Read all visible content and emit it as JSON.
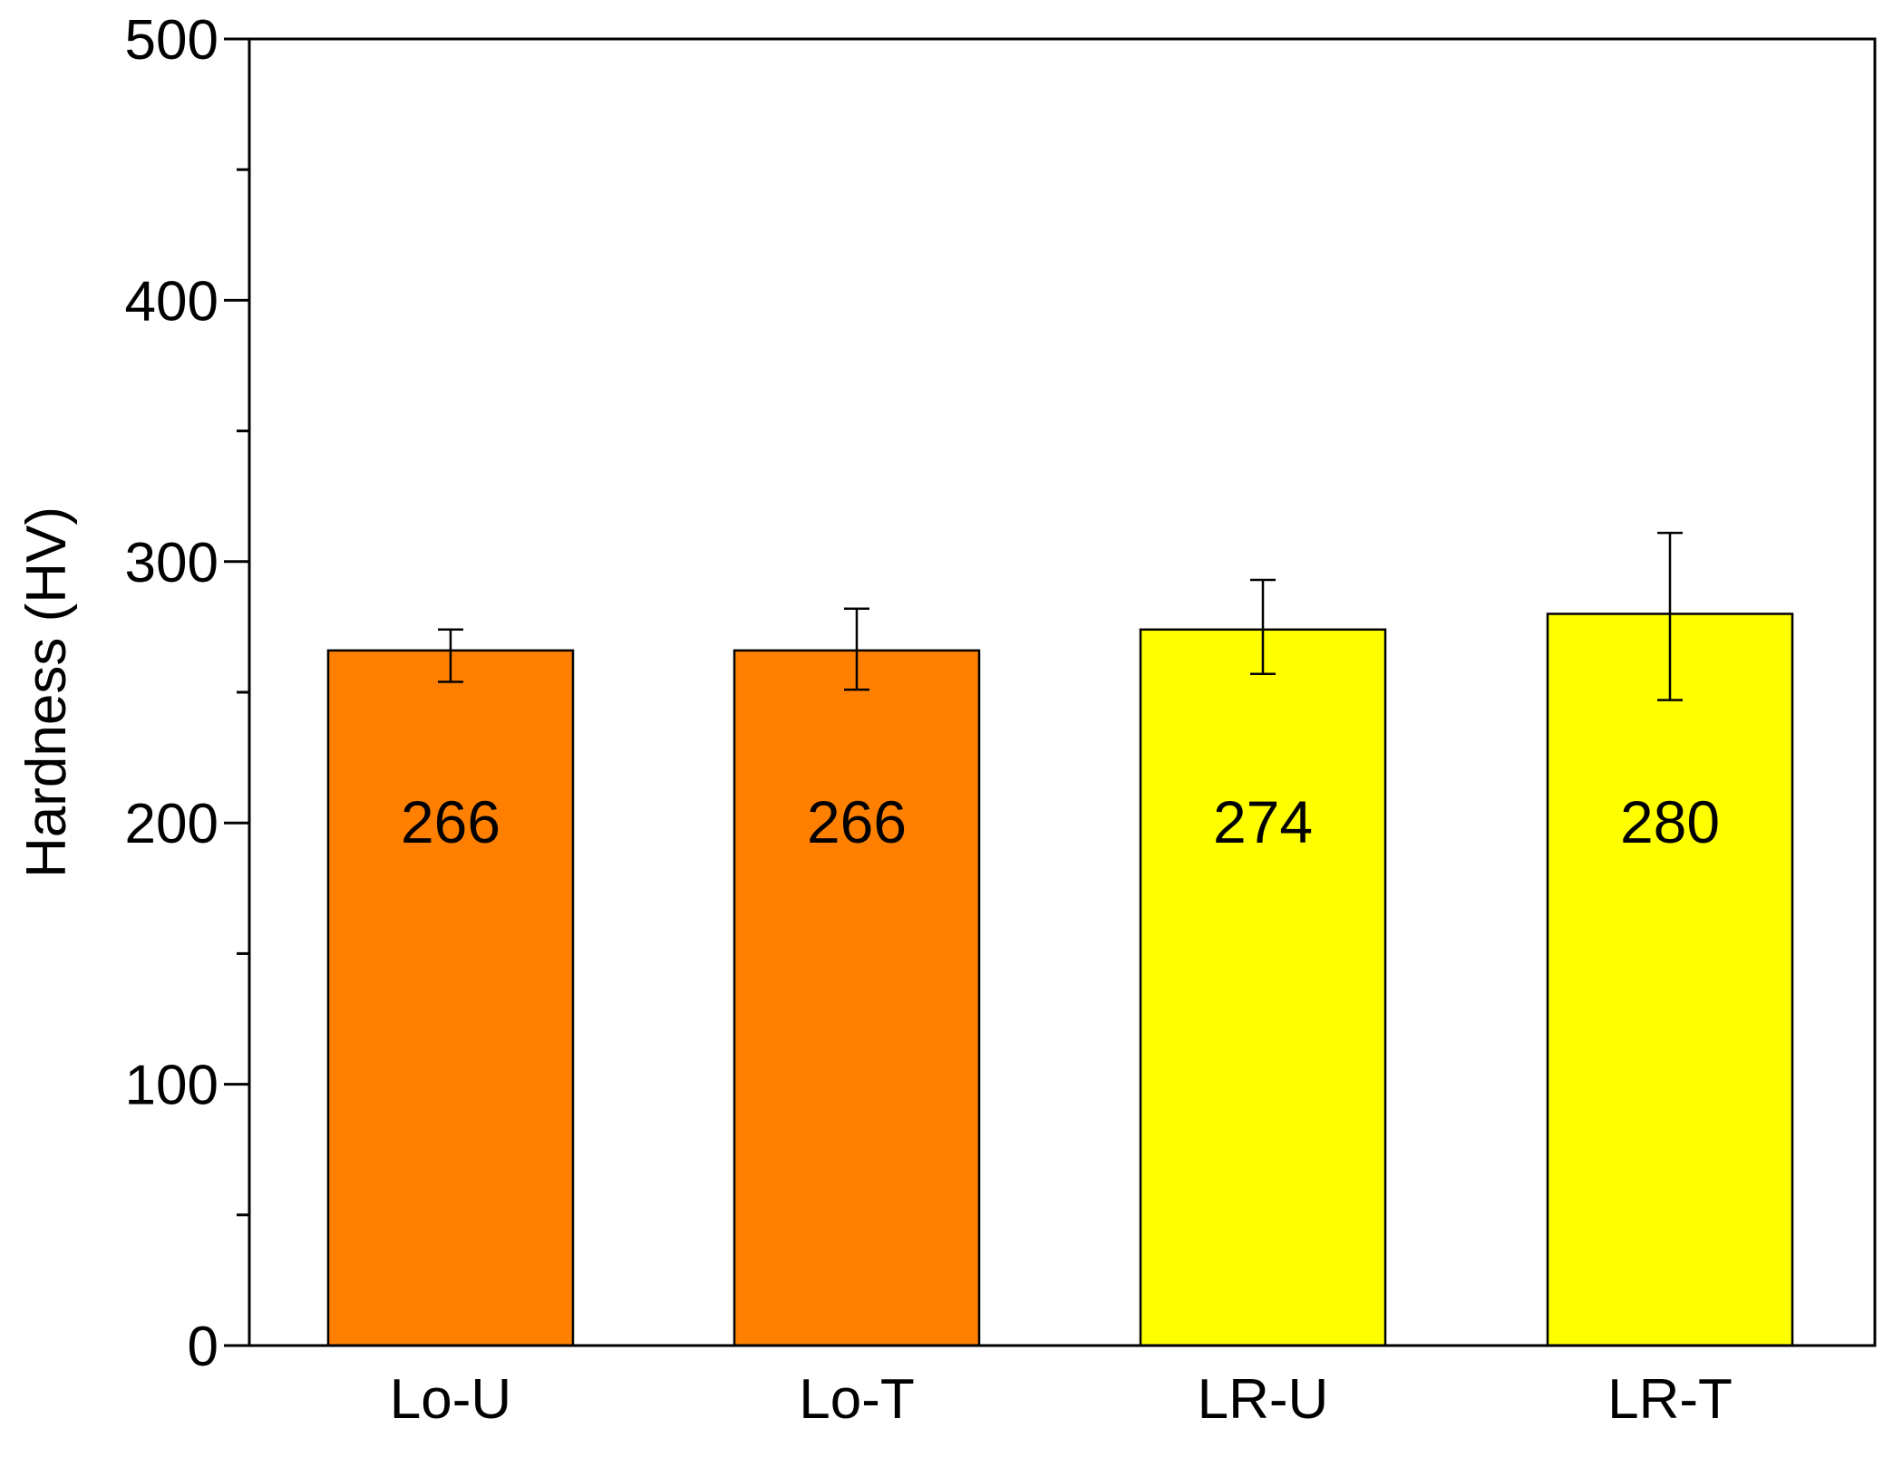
{
  "chart_data": {
    "type": "bar",
    "title": "",
    "xlabel": "",
    "ylabel": "Hardness (HV)",
    "ylim": [
      0,
      500
    ],
    "yticks": [
      0,
      100,
      200,
      300,
      400,
      500
    ],
    "yticks_minor": [
      50,
      150,
      250,
      350,
      450
    ],
    "grid": false,
    "legend": "none",
    "categories": [
      "Lo-U",
      "Lo-T",
      "LR-U",
      "LR-T"
    ],
    "values": [
      266,
      266,
      274,
      280
    ],
    "error_bars": [
      {
        "low": 254,
        "high": 274
      },
      {
        "low": 251,
        "high": 282
      },
      {
        "low": 257,
        "high": 293
      },
      {
        "low": 247,
        "high": 311
      }
    ],
    "data_labels": [
      "266",
      "266",
      "274",
      "280"
    ],
    "data_label_value": 200,
    "colors": [
      "#ff8000",
      "#ff8000",
      "#ffff00",
      "#ffff00"
    ],
    "edge_color": "#000000"
  }
}
